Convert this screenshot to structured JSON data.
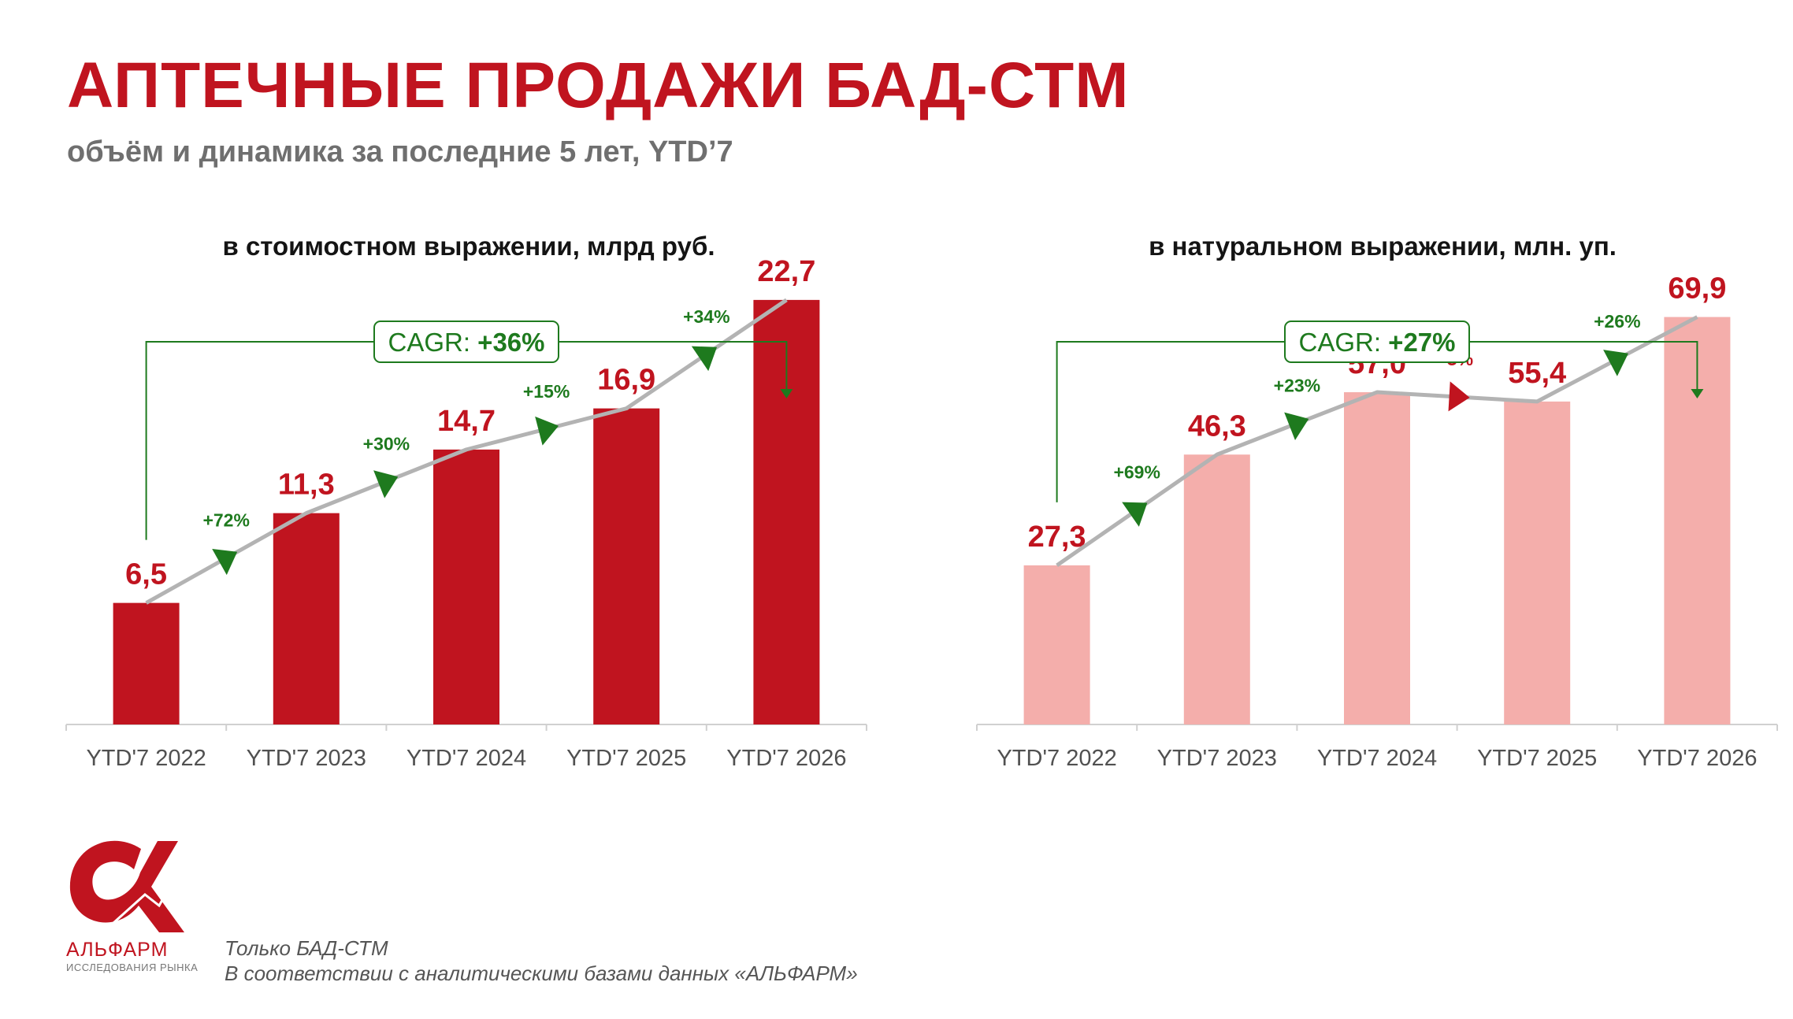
{
  "header": {
    "title": "АПТЕЧНЫЕ ПРОДАЖИ БАД-СТМ",
    "subtitle": "объём и динамика за последние 5 лет, YTD’7"
  },
  "colors": {
    "accent_red": "#c0141f",
    "light_red": "#f4aeab",
    "positive_green": "#1e7a1e",
    "negative_red": "#c0141f",
    "trend_gray": "#b3b3b3"
  },
  "chart_data": [
    {
      "type": "bar",
      "title": "в стоимостном выражении, млрд руб.",
      "categories": [
        "YTD'7 2022",
        "YTD'7 2023",
        "YTD'7 2024",
        "YTD'7 2025",
        "YTD'7 2026"
      ],
      "values": [
        6.5,
        11.3,
        14.7,
        16.9,
        22.7
      ],
      "value_labels": [
        "6,5",
        "11,3",
        "14,7",
        "16,9",
        "22,7"
      ],
      "growth_labels": [
        "+72%",
        "+30%",
        "+15%",
        "+34%"
      ],
      "growth_direction": [
        "up",
        "up",
        "up",
        "up"
      ],
      "cagr_prefix": "CAGR: ",
      "cagr_value": "+36%",
      "bar_color": "#c0141f",
      "ylim": [
        0,
        24
      ]
    },
    {
      "type": "bar",
      "title": "в натуральном выражении, млн. уп.",
      "categories": [
        "YTD'7 2022",
        "YTD'7 2023",
        "YTD'7 2024",
        "YTD'7 2025",
        "YTD'7 2026"
      ],
      "values": [
        27.3,
        46.3,
        57.0,
        55.4,
        69.9
      ],
      "value_labels": [
        "27,3",
        "46,3",
        "57,0",
        "55,4",
        "69,9"
      ],
      "growth_labels": [
        "+69%",
        "+23%",
        "-3%",
        "+26%"
      ],
      "growth_direction": [
        "up",
        "up",
        "down",
        "up"
      ],
      "cagr_prefix": "CAGR: ",
      "cagr_value": "+27%",
      "bar_color": "#f4aeab",
      "ylim": [
        0,
        77
      ]
    }
  ],
  "footer": {
    "note_line1": "Только БАД-СТМ",
    "note_line2": "В соответствии с аналитическими базами данных «АЛЬФАРМ»",
    "logo_name": "АЛЬФАРМ",
    "logo_tagline": "ИССЛЕДОВАНИЯ РЫНКА",
    "logo_icon": "alpha-icon"
  }
}
